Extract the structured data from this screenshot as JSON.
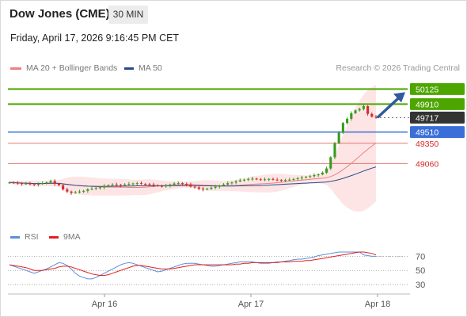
{
  "header": {
    "title": "Dow Jones (CME)",
    "timeframe": "30 MIN",
    "datetime": "Friday, April 17, 2026 9:16:45 PM CET"
  },
  "legend": {
    "ma20_label": "MA 20 + Bollinger Bands",
    "ma50_label": "MA 50",
    "credit": "Research © 2026 Trading Central"
  },
  "colors": {
    "resistance": "#4da600",
    "pivot": "#3a6fd8",
    "support": "#e34040",
    "last": "#333333",
    "candle_up": "#3a9a1f",
    "candle_down": "#d32f2f",
    "ma20": "#f08080",
    "ma50": "#2a4a8a",
    "rsi": "#5b8fd9",
    "rsi_ma": "#e32020",
    "arrow": "#2f5aa0"
  },
  "chart_data": [
    {
      "type": "line",
      "subtype": "candlestick",
      "x_ticks": [
        "Apr 16",
        "Apr 17",
        "Apr 18"
      ],
      "ylim": [
        48170,
        50265
      ],
      "levels": [
        {
          "label": "50125",
          "value": 50125,
          "kind": "resistance"
        },
        {
          "label": "49910",
          "value": 49910,
          "kind": "resistance"
        },
        {
          "label": "49717",
          "value": 49717,
          "kind": "last"
        },
        {
          "label": "49510",
          "value": 49510,
          "kind": "pivot"
        },
        {
          "label": "49350",
          "value": 49350,
          "kind": "support"
        },
        {
          "label": "49060",
          "value": 49060,
          "kind": "support"
        }
      ],
      "series": [
        {
          "name": "MA 20 + Bollinger Bands"
        },
        {
          "name": "MA 50"
        }
      ],
      "close": [
        48790,
        48785,
        48780,
        48770,
        48775,
        48765,
        48760,
        48770,
        48780,
        48790,
        48810,
        48770,
        48750,
        48690,
        48660,
        48640,
        48650,
        48660,
        48670,
        48690,
        48700,
        48710,
        48720,
        48740,
        48750,
        48760,
        48755,
        48750,
        48760,
        48770,
        48775,
        48780,
        48770,
        48765,
        48760,
        48750,
        48740,
        48735,
        48745,
        48760,
        48775,
        48780,
        48770,
        48760,
        48730,
        48720,
        48700,
        48690,
        48700,
        48715,
        48730,
        48745,
        48760,
        48780,
        48790,
        48805,
        48820,
        48830,
        48840,
        48845,
        48835,
        48830,
        48835,
        48840,
        48830,
        48825,
        48820,
        48825,
        48830,
        48840,
        48850,
        48860,
        48870,
        48880,
        48895,
        48905,
        48930,
        48990,
        49150,
        49350,
        49500,
        49640,
        49700,
        49780,
        49820,
        49840,
        49880,
        49770,
        49730,
        49717
      ],
      "rsi": {
        "ylim": [
          20,
          85
        ],
        "ticks": [
          70,
          50,
          30
        ],
        "values": [
          58,
          56,
          54,
          52,
          50,
          48,
          46,
          48,
          50,
          52,
          55,
          58,
          61,
          60,
          57,
          52,
          46,
          42,
          40,
          38,
          38,
          40,
          43,
          46,
          49,
          52,
          55,
          58,
          60,
          61,
          60,
          58,
          56,
          54,
          52,
          50,
          48,
          49,
          51,
          53,
          55,
          57,
          59,
          60,
          60,
          60,
          59,
          58,
          57,
          56,
          56,
          57,
          58,
          59,
          60,
          61,
          62,
          62,
          62,
          62,
          61,
          60,
          60,
          60,
          61,
          62,
          62,
          63,
          64,
          65,
          66,
          66,
          67,
          68,
          69,
          71,
          72,
          73,
          74,
          75,
          76,
          76,
          76,
          76,
          76,
          76,
          72,
          71,
          70,
          70
        ],
        "ma_values": [
          58,
          57,
          56,
          55,
          54,
          52,
          50,
          50,
          50,
          51,
          52,
          53,
          55,
          56,
          56,
          55,
          53,
          51,
          49,
          47,
          45,
          44,
          43,
          43,
          44,
          46,
          48,
          50,
          52,
          54,
          56,
          57,
          57,
          56,
          55,
          54,
          53,
          52,
          52,
          52,
          53,
          54,
          55,
          56,
          57,
          58,
          58,
          58,
          58,
          58,
          58,
          58,
          58,
          58,
          58,
          59,
          59,
          60,
          60,
          61,
          61,
          61,
          61,
          61,
          61,
          61,
          62,
          62,
          62,
          63,
          63,
          63,
          64,
          64,
          65,
          66,
          67,
          68,
          69,
          70,
          71,
          72,
          73,
          74,
          75,
          76,
          76,
          75,
          74,
          72
        ]
      }
    }
  ],
  "rsi_legend": {
    "rsi_label": "RSI",
    "ma_label": "9MA"
  }
}
